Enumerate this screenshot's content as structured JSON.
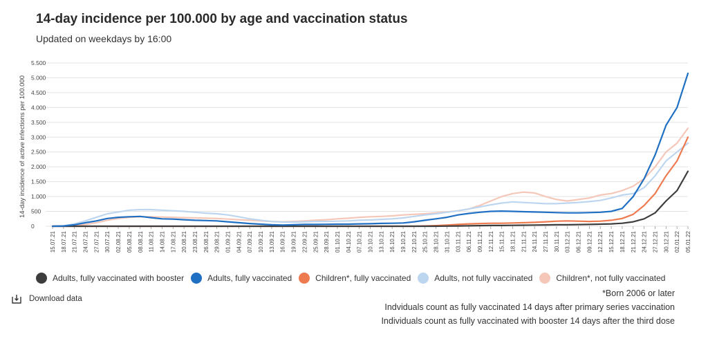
{
  "header": {
    "title": "14-day incidence per 100.000 by age and vaccination status",
    "subtitle": "Updated on weekdays by 16:00"
  },
  "download": {
    "label": "Download data",
    "icon": "download-icon"
  },
  "notes": [
    "*Born 2006 or later",
    "Indviduals count as fully vaccinated 14 days after primary series vaccination",
    "Individuals count as fully vaccinated with booster 14 days after the third dose"
  ],
  "chart_data": {
    "type": "line",
    "ylabel": "14-day incidence of active infections per 100.000",
    "ylim": [
      0,
      5500
    ],
    "yticks": [
      0,
      500,
      1000,
      1500,
      2000,
      2500,
      3000,
      3500,
      4000,
      4500,
      5000,
      5500
    ],
    "ytick_labels": [
      "0",
      "500",
      "1.000",
      "1.500",
      "2.000",
      "2.500",
      "3.000",
      "3.500",
      "4.000",
      "4.500",
      "5.000",
      "5.500"
    ],
    "x": [
      "15.07.21",
      "18.07.21",
      "21.07.21",
      "24.07.21",
      "27.07.21",
      "30.07.21",
      "02.08.21",
      "05.08.21",
      "08.08.21",
      "11.08.21",
      "14.08.21",
      "17.08.21",
      "20.08.21",
      "23.08.21",
      "26.08.21",
      "29.08.21",
      "01.09.21",
      "04.09.21",
      "07.09.21",
      "10.09.21",
      "13.09.21",
      "16.09.21",
      "19.09.21",
      "22.09.21",
      "25.09.21",
      "28.09.21",
      "01.10.21",
      "04.10.21",
      "07.10.21",
      "10.10.21",
      "13.10.21",
      "16.10.21",
      "19.10.21",
      "22.10.21",
      "25.10.21",
      "28.10.21",
      "31.10.21",
      "03.11.21",
      "06.11.21",
      "09.11.21",
      "12.11.21",
      "15.11.21",
      "18.11.21",
      "21.11.21",
      "24.11.21",
      "27.11.21",
      "30.11.21",
      "03.12.21",
      "06.12.21",
      "09.12.21",
      "12.12.21",
      "15.12.21",
      "18.12.21",
      "21.12.21",
      "24.12.21",
      "27.12.21",
      "30.12.21",
      "02.01.22",
      "05.01.22"
    ],
    "grid": true,
    "legend_position": "bottom",
    "series": [
      {
        "name": "Adults, fully vaccinated with booster",
        "color": "#3d3d3d",
        "values": [
          0,
          0,
          0,
          0,
          0,
          0,
          0,
          0,
          0,
          0,
          0,
          0,
          0,
          0,
          0,
          0,
          0,
          0,
          0,
          0,
          0,
          0,
          0,
          0,
          0,
          0,
          0,
          0,
          0,
          0,
          0,
          0,
          0,
          0,
          0,
          0,
          5,
          10,
          15,
          20,
          25,
          25,
          30,
          35,
          40,
          45,
          50,
          50,
          55,
          60,
          70,
          80,
          100,
          150,
          250,
          450,
          850,
          1200,
          1850
        ]
      },
      {
        "name": "Adults, fully vaccinated",
        "color": "#1f6fc3",
        "values": [
          0,
          10,
          50,
          120,
          180,
          260,
          300,
          320,
          330,
          290,
          250,
          240,
          220,
          200,
          190,
          180,
          150,
          120,
          90,
          70,
          50,
          40,
          50,
          60,
          60,
          65,
          70,
          70,
          80,
          85,
          95,
          100,
          110,
          150,
          200,
          250,
          300,
          380,
          430,
          470,
          500,
          510,
          500,
          490,
          480,
          470,
          460,
          450,
          450,
          460,
          470,
          500,
          600,
          1000,
          1600,
          2400,
          3400,
          4000,
          5150
        ]
      },
      {
        "name": "Children*, fully vaccinated",
        "color": "#ee7a4f",
        "values": [
          0,
          0,
          0,
          0,
          0,
          0,
          0,
          0,
          0,
          0,
          0,
          0,
          0,
          0,
          0,
          0,
          0,
          0,
          0,
          0,
          0,
          0,
          0,
          0,
          0,
          0,
          0,
          0,
          0,
          0,
          0,
          0,
          0,
          0,
          10,
          20,
          40,
          60,
          80,
          90,
          100,
          100,
          110,
          120,
          130,
          150,
          170,
          180,
          170,
          160,
          170,
          200,
          260,
          400,
          700,
          1100,
          1700,
          2200,
          3000
        ]
      },
      {
        "name": "Adults, not fully vaccinated",
        "color": "#bdd6f0",
        "values": [
          0,
          10,
          80,
          180,
          300,
          420,
          480,
          540,
          560,
          560,
          540,
          520,
          500,
          470,
          440,
          420,
          380,
          320,
          250,
          200,
          160,
          140,
          140,
          150,
          160,
          160,
          170,
          180,
          200,
          210,
          230,
          250,
          280,
          330,
          380,
          420,
          470,
          520,
          580,
          650,
          720,
          780,
          820,
          800,
          780,
          760,
          760,
          780,
          800,
          830,
          870,
          950,
          1050,
          1100,
          1300,
          1700,
          2200,
          2500,
          2800
        ]
      },
      {
        "name": "Children*, not fully vaccinated",
        "color": "#f5c7b8",
        "values": [
          0,
          5,
          20,
          60,
          120,
          200,
          260,
          300,
          320,
          320,
          310,
          300,
          290,
          280,
          270,
          260,
          240,
          220,
          200,
          180,
          160,
          150,
          160,
          180,
          200,
          220,
          250,
          270,
          300,
          320,
          330,
          350,
          380,
          400,
          420,
          450,
          480,
          520,
          580,
          700,
          850,
          1000,
          1100,
          1150,
          1120,
          1000,
          900,
          850,
          900,
          950,
          1050,
          1100,
          1200,
          1350,
          1600,
          2000,
          2500,
          2800,
          3300
        ]
      }
    ]
  }
}
